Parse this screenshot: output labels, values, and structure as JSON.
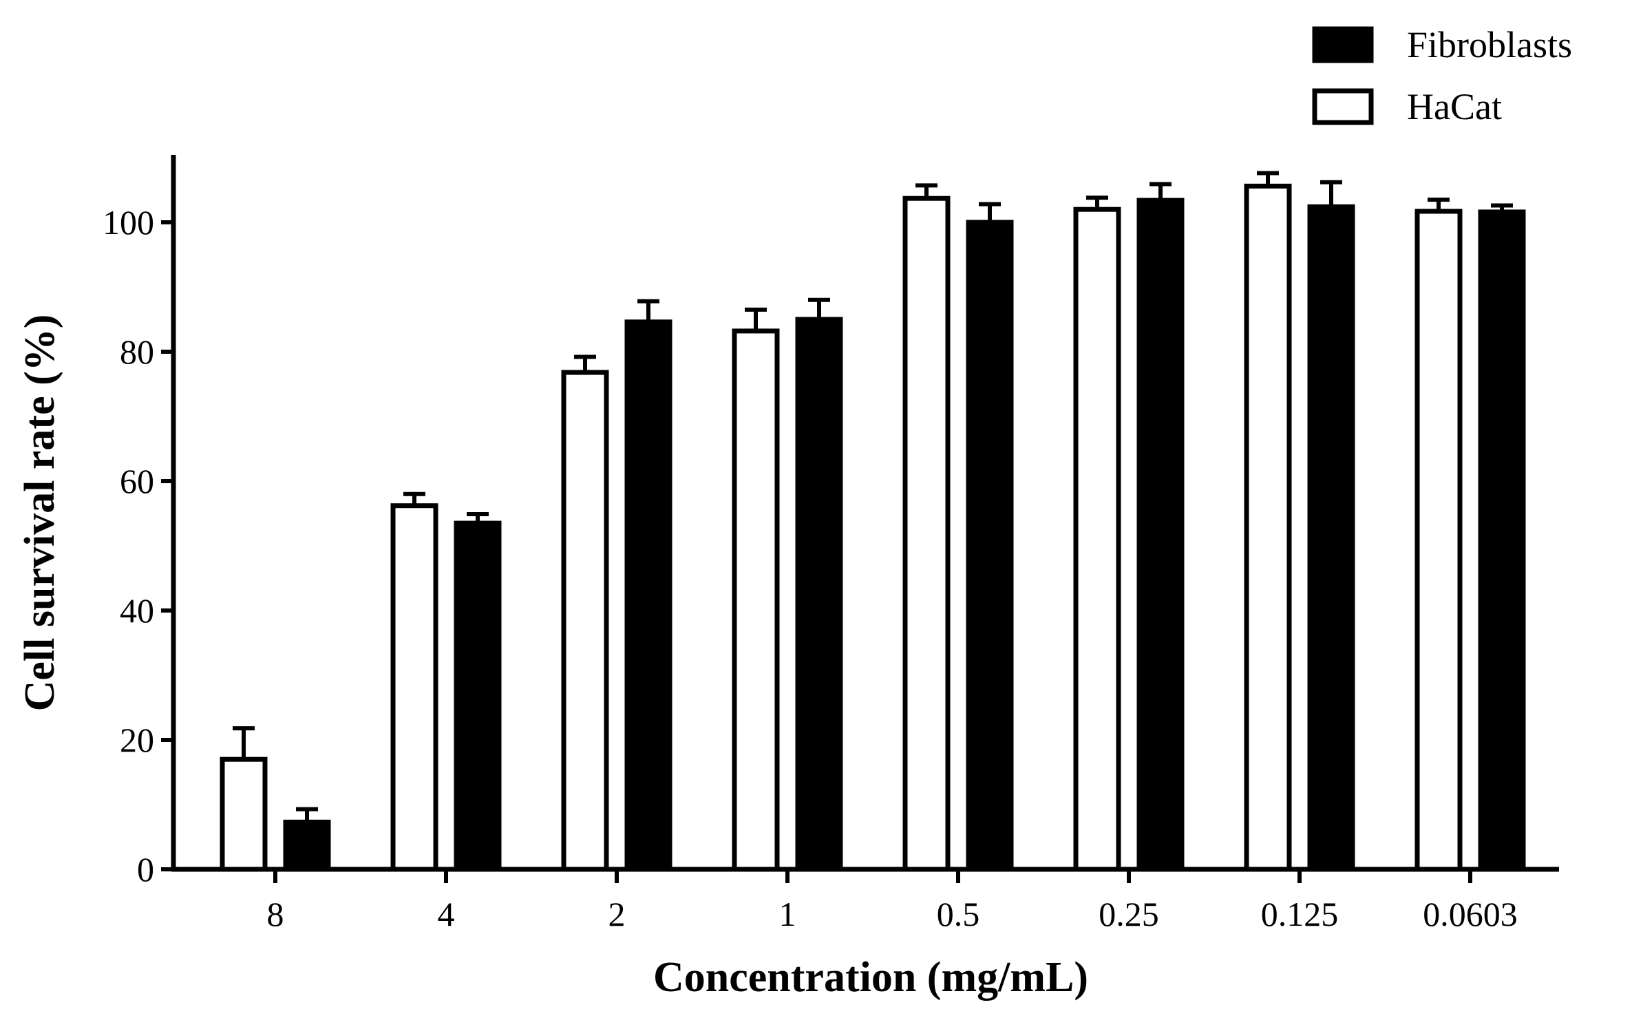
{
  "chart_data": {
    "type": "bar",
    "title": "",
    "xlabel": "Concentration (mg/mL)",
    "ylabel": "Cell survival rate (%)",
    "ylim": [
      0,
      110
    ],
    "yticks": [
      0,
      20,
      40,
      60,
      80,
      100
    ],
    "categories": [
      "8",
      "4",
      "2",
      "1",
      "0.5",
      "0.25",
      "0.125",
      "0.0603"
    ],
    "series": [
      {
        "name": "HaCat",
        "fill": "#ffffff",
        "values": [
          17,
          56.2,
          76.8,
          83.2,
          103.7,
          102,
          105.6,
          101.7
        ],
        "errors": [
          4.8,
          1.8,
          2.4,
          3.3,
          2,
          1.8,
          2,
          1.8
        ]
      },
      {
        "name": "Fibroblasts",
        "fill": "#000000",
        "values": [
          7.3,
          53.5,
          84.6,
          85,
          100,
          103.4,
          102.4,
          101.6
        ],
        "errors": [
          2,
          1.4,
          3.2,
          3,
          2.8,
          2.5,
          3.8,
          1
        ]
      }
    ],
    "legend": {
      "position": "top-right",
      "entries": [
        {
          "name": "Fibroblasts",
          "fill": "#000000"
        },
        {
          "name": "HaCat",
          "fill": "#ffffff"
        }
      ]
    },
    "grid": false
  }
}
